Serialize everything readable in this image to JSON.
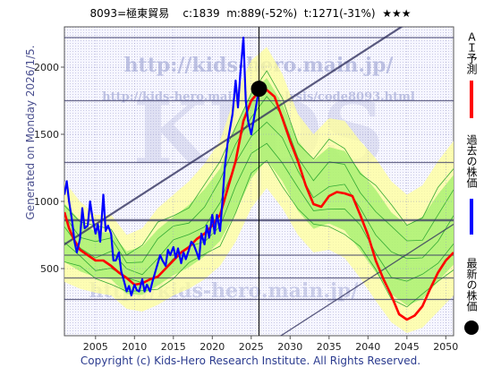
{
  "header": {
    "code_name": "8093=極東貿易",
    "current_label": "c:1839",
    "median_label": "m:889(-52%)",
    "target_label": "t:1271(-31%)",
    "rating": "★★★"
  },
  "side_label": "Generated on Monday 2026/1/5.",
  "watermarks": {
    "main": "http://kids-hero.main.jp/",
    "sub": "http://kids-hero.main.jp/analysis/code8093.html",
    "big": "KIDS",
    "lower": "http://kids-hero.main.jp/"
  },
  "footer": "Copyright (c) Kids-Hero Research Institute. All Rights Reserved.",
  "legend": [
    {
      "key": "prediction",
      "label": "ＡＩ予測",
      "color": "#ff0000"
    },
    {
      "key": "past",
      "label": "過去の株価",
      "color": "#0000ff"
    },
    {
      "key": "latest",
      "label": "最新の株価",
      "color": "#000000"
    }
  ],
  "colors": {
    "prediction": "#ff0000",
    "past": "#0000ff",
    "band_light": "#ffff99",
    "band_green": "#99ee66",
    "band_line": "#33aa33",
    "trend_line": "#33335f",
    "hline": "#3a3a66"
  },
  "chart_data": {
    "type": "line",
    "x_ticks": [
      2005,
      2010,
      2015,
      2020,
      2025,
      2030,
      2035,
      2040,
      2045,
      2050
    ],
    "y_ticks": [
      500,
      1000,
      1500,
      2000
    ],
    "xlim": [
      2001,
      2051
    ],
    "ylim": [
      0,
      2300
    ],
    "grid": true,
    "latest_point": {
      "x": 2026.0,
      "y": 1839
    },
    "horizontal_levels": [
      270,
      430,
      600,
      860,
      1290,
      1750,
      2220
    ],
    "series": [
      {
        "name": "過去の株価",
        "key": "past",
        "points": [
          [
            2001.0,
            1050
          ],
          [
            2001.3,
            1150
          ],
          [
            2001.6,
            1000
          ],
          [
            2002.0,
            850
          ],
          [
            2002.3,
            700
          ],
          [
            2002.6,
            620
          ],
          [
            2003.0,
            720
          ],
          [
            2003.3,
            950
          ],
          [
            2003.6,
            800
          ],
          [
            2004.0,
            820
          ],
          [
            2004.3,
            1000
          ],
          [
            2004.6,
            880
          ],
          [
            2005.0,
            760
          ],
          [
            2005.3,
            830
          ],
          [
            2005.6,
            700
          ],
          [
            2006.0,
            1050
          ],
          [
            2006.3,
            780
          ],
          [
            2006.6,
            820
          ],
          [
            2007.0,
            760
          ],
          [
            2007.3,
            560
          ],
          [
            2007.6,
            560
          ],
          [
            2008.0,
            620
          ],
          [
            2008.3,
            480
          ],
          [
            2008.6,
            420
          ],
          [
            2009.0,
            330
          ],
          [
            2009.3,
            370
          ],
          [
            2009.6,
            300
          ],
          [
            2010.0,
            380
          ],
          [
            2010.3,
            340
          ],
          [
            2010.6,
            330
          ],
          [
            2011.0,
            420
          ],
          [
            2011.3,
            330
          ],
          [
            2011.6,
            380
          ],
          [
            2012.0,
            330
          ],
          [
            2012.3,
            400
          ],
          [
            2012.6,
            460
          ],
          [
            2013.0,
            540
          ],
          [
            2013.3,
            600
          ],
          [
            2013.6,
            560
          ],
          [
            2014.0,
            520
          ],
          [
            2014.3,
            640
          ],
          [
            2014.6,
            600
          ],
          [
            2015.0,
            660
          ],
          [
            2015.3,
            580
          ],
          [
            2015.6,
            650
          ],
          [
            2016.0,
            540
          ],
          [
            2016.3,
            620
          ],
          [
            2016.6,
            570
          ],
          [
            2017.0,
            640
          ],
          [
            2017.3,
            700
          ],
          [
            2017.6,
            680
          ],
          [
            2018.0,
            620
          ],
          [
            2018.3,
            570
          ],
          [
            2018.6,
            760
          ],
          [
            2019.0,
            680
          ],
          [
            2019.3,
            820
          ],
          [
            2019.6,
            730
          ],
          [
            2020.0,
            900
          ],
          [
            2020.3,
            760
          ],
          [
            2020.6,
            900
          ],
          [
            2021.0,
            780
          ],
          [
            2021.3,
            1000
          ],
          [
            2021.6,
            1250
          ],
          [
            2022.0,
            1450
          ],
          [
            2022.3,
            1550
          ],
          [
            2022.6,
            1650
          ],
          [
            2023.0,
            1900
          ],
          [
            2023.3,
            1700
          ],
          [
            2023.6,
            1950
          ],
          [
            2024.0,
            2220
          ],
          [
            2024.3,
            1750
          ],
          [
            2024.6,
            1600
          ],
          [
            2025.0,
            1500
          ],
          [
            2025.3,
            1600
          ],
          [
            2025.6,
            1700
          ],
          [
            2026.0,
            1839
          ]
        ]
      },
      {
        "name": "ＡＩ予測",
        "key": "prediction",
        "points": [
          [
            2001.0,
            920
          ],
          [
            2001.6,
            800
          ],
          [
            2002.2,
            720
          ],
          [
            2003.0,
            640
          ],
          [
            2004.0,
            600
          ],
          [
            2005.0,
            560
          ],
          [
            2006.0,
            560
          ],
          [
            2007.0,
            520
          ],
          [
            2008.0,
            470
          ],
          [
            2009.0,
            430
          ],
          [
            2010.0,
            380
          ],
          [
            2011.0,
            390
          ],
          [
            2012.0,
            420
          ],
          [
            2013.0,
            440
          ],
          [
            2014.0,
            500
          ],
          [
            2015.0,
            560
          ],
          [
            2016.0,
            620
          ],
          [
            2017.0,
            660
          ],
          [
            2018.0,
            720
          ],
          [
            2019.0,
            760
          ],
          [
            2020.0,
            820
          ],
          [
            2021.0,
            900
          ],
          [
            2022.0,
            1100
          ],
          [
            2023.0,
            1300
          ],
          [
            2024.0,
            1600
          ],
          [
            2025.0,
            1750
          ],
          [
            2026.0,
            1820
          ],
          [
            2027.0,
            1830
          ],
          [
            2028.0,
            1780
          ],
          [
            2029.0,
            1620
          ],
          [
            2030.0,
            1450
          ],
          [
            2031.0,
            1300
          ],
          [
            2032.0,
            1120
          ],
          [
            2033.0,
            980
          ],
          [
            2034.0,
            960
          ],
          [
            2035.0,
            1040
          ],
          [
            2036.0,
            1070
          ],
          [
            2037.0,
            1060
          ],
          [
            2038.0,
            1040
          ],
          [
            2039.0,
            900
          ],
          [
            2040.0,
            750
          ],
          [
            2041.0,
            560
          ],
          [
            2042.0,
            420
          ],
          [
            2043.0,
            300
          ],
          [
            2044.0,
            160
          ],
          [
            2045.0,
            120
          ],
          [
            2046.0,
            150
          ],
          [
            2047.0,
            220
          ],
          [
            2048.0,
            350
          ],
          [
            2049.0,
            470
          ],
          [
            2050.0,
            560
          ],
          [
            2051.0,
            620
          ]
        ]
      },
      {
        "name": "",
        "key": "band_hi",
        "points": [
          [
            2001.0,
            1150
          ],
          [
            2003.0,
            1000
          ],
          [
            2005.0,
            900
          ],
          [
            2007.0,
            900
          ],
          [
            2009.0,
            750
          ],
          [
            2011.0,
            800
          ],
          [
            2013.0,
            950
          ],
          [
            2015.0,
            1050
          ],
          [
            2017.0,
            1150
          ],
          [
            2019.0,
            1280
          ],
          [
            2021.0,
            1450
          ],
          [
            2023.0,
            1800
          ],
          [
            2025.0,
            2050
          ],
          [
            2027.0,
            2150
          ],
          [
            2029.0,
            1950
          ],
          [
            2031.0,
            1650
          ],
          [
            2033.0,
            1500
          ],
          [
            2035.0,
            1620
          ],
          [
            2037.0,
            1600
          ],
          [
            2039.0,
            1450
          ],
          [
            2041.0,
            1320
          ],
          [
            2043.0,
            1150
          ],
          [
            2045.0,
            1050
          ],
          [
            2047.0,
            1120
          ],
          [
            2049.0,
            1300
          ],
          [
            2051.0,
            1450
          ]
        ]
      },
      {
        "name": "",
        "key": "band_lo",
        "points": [
          [
            2001.0,
            400
          ],
          [
            2003.0,
            350
          ],
          [
            2005.0,
            320
          ],
          [
            2007.0,
            300
          ],
          [
            2009.0,
            200
          ],
          [
            2011.0,
            180
          ],
          [
            2013.0,
            230
          ],
          [
            2015.0,
            300
          ],
          [
            2017.0,
            350
          ],
          [
            2019.0,
            420
          ],
          [
            2021.0,
            520
          ],
          [
            2023.0,
            700
          ],
          [
            2025.0,
            950
          ],
          [
            2027.0,
            1100
          ],
          [
            2029.0,
            950
          ],
          [
            2031.0,
            750
          ],
          [
            2033.0,
            620
          ],
          [
            2035.0,
            640
          ],
          [
            2037.0,
            580
          ],
          [
            2039.0,
            430
          ],
          [
            2041.0,
            260
          ],
          [
            2043.0,
            100
          ],
          [
            2045.0,
            20
          ],
          [
            2047.0,
            60
          ],
          [
            2049.0,
            180
          ],
          [
            2051.0,
            300
          ]
        ]
      }
    ]
  }
}
